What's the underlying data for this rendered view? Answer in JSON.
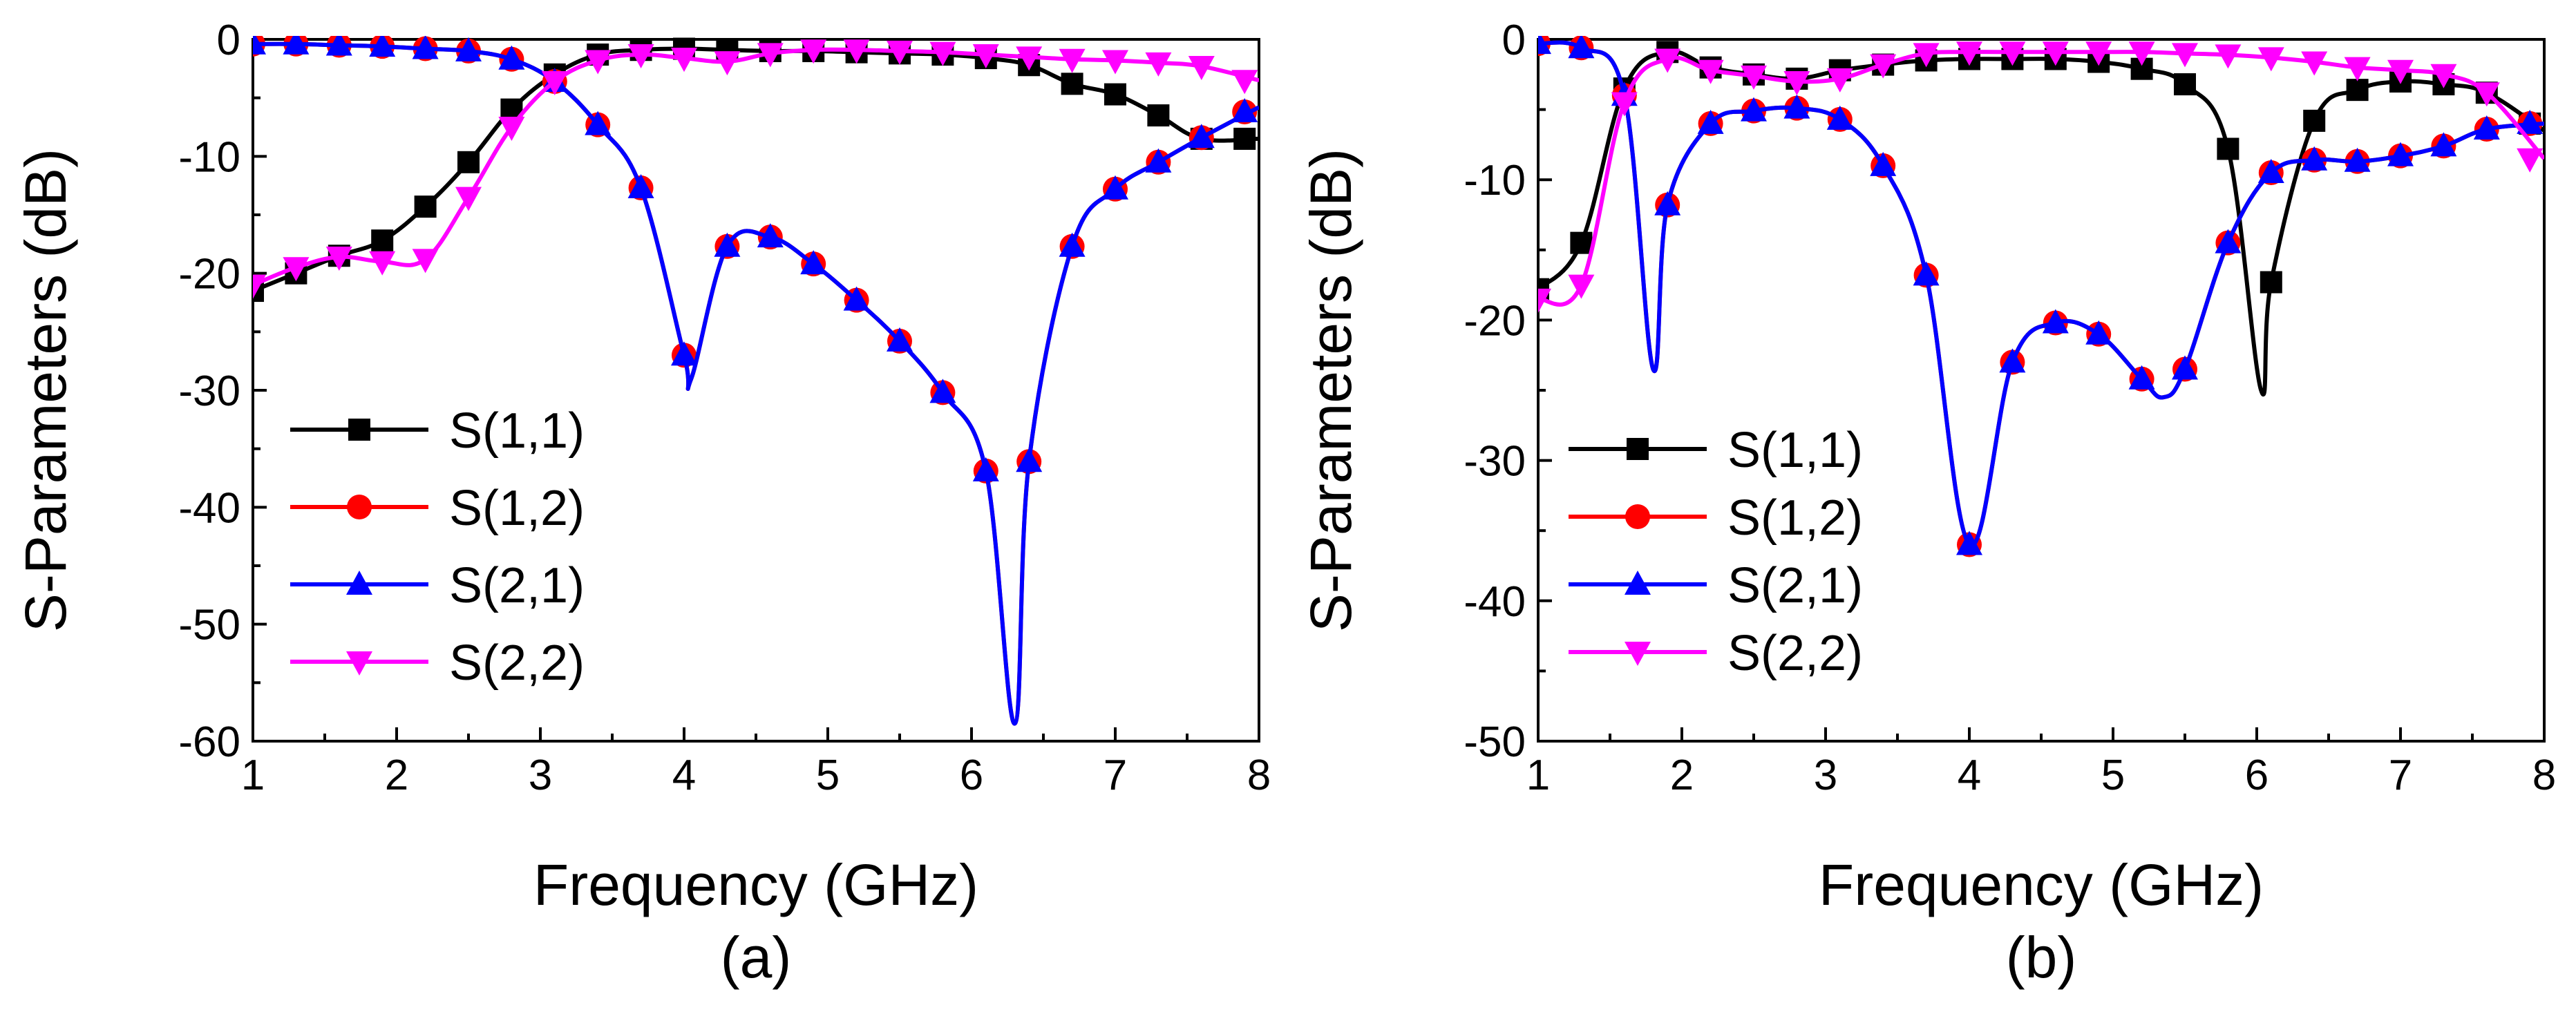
{
  "chart_data": [
    {
      "type": "line",
      "panel_label": "(a)",
      "xlabel": "Frequency (GHz)",
      "ylabel": "S-Parameters (dB)",
      "xlim": [
        1,
        8
      ],
      "ylim": [
        -60,
        0
      ],
      "xticks": [
        1,
        2,
        3,
        4,
        5,
        6,
        7,
        8
      ],
      "yticks": [
        0,
        -10,
        -20,
        -30,
        -40,
        -50,
        -60
      ],
      "grid": false,
      "legend_position": "bottom-left",
      "series": [
        {
          "name": "S(1,1)",
          "color": "#000000",
          "marker": "square",
          "x": [
            1.0,
            1.3,
            1.6,
            1.9,
            2.2,
            2.5,
            2.8,
            3.1,
            3.4,
            3.7,
            4.0,
            4.3,
            4.6,
            4.9,
            5.2,
            5.5,
            5.8,
            6.1,
            6.4,
            6.7,
            7.0,
            7.3,
            7.6,
            7.9
          ],
          "y": [
            -21.5,
            -20.0,
            -18.5,
            -17.2,
            -14.3,
            -10.5,
            -6.0,
            -3.0,
            -1.3,
            -0.9,
            -0.8,
            -0.9,
            -1.0,
            -1.0,
            -1.1,
            -1.2,
            -1.3,
            -1.6,
            -2.2,
            -3.8,
            -4.7,
            -6.5,
            -8.5,
            -8.5
          ],
          "curve_x": [
            1.0,
            1.3,
            1.6,
            1.9,
            2.2,
            2.5,
            2.8,
            3.1,
            3.4,
            3.7,
            4.0,
            4.3,
            4.6,
            4.9,
            5.2,
            5.5,
            5.8,
            6.1,
            6.4,
            6.7,
            7.0,
            7.3,
            7.6,
            8.0
          ],
          "curve_y": [
            -21.5,
            -20.0,
            -18.5,
            -17.2,
            -14.3,
            -10.5,
            -6.0,
            -3.0,
            -1.3,
            -0.9,
            -0.8,
            -0.9,
            -1.0,
            -1.0,
            -1.1,
            -1.2,
            -1.3,
            -1.6,
            -2.2,
            -3.8,
            -4.7,
            -6.5,
            -8.5,
            -8.5
          ]
        },
        {
          "name": "S(1,2)",
          "color": "#ff0000",
          "marker": "circle",
          "x": [
            1.0,
            1.3,
            1.6,
            1.9,
            2.2,
            2.5,
            2.8,
            3.1,
            3.4,
            3.7,
            4.0,
            4.3,
            4.6,
            4.9,
            5.2,
            5.5,
            5.8,
            6.1,
            6.4,
            6.7,
            7.0,
            7.3,
            7.6,
            7.9
          ],
          "y": [
            -0.4,
            -0.4,
            -0.5,
            -0.6,
            -0.8,
            -1.0,
            -1.7,
            -3.6,
            -7.3,
            -12.7,
            -27.0,
            -17.7,
            -16.9,
            -19.2,
            -22.3,
            -25.8,
            -30.2,
            -36.9,
            -36.1,
            -17.7,
            -12.8,
            -10.5,
            -8.4,
            -6.2
          ],
          "curve_x": [
            1.0,
            1.3,
            1.6,
            1.9,
            2.2,
            2.5,
            2.8,
            3.1,
            3.4,
            3.7,
            4.0,
            4.05,
            4.3,
            4.6,
            4.9,
            5.2,
            5.5,
            5.8,
            6.1,
            6.3,
            6.4,
            6.7,
            7.0,
            7.3,
            7.6,
            8.0
          ],
          "curve_y": [
            -0.4,
            -0.4,
            -0.5,
            -0.6,
            -0.8,
            -1.0,
            -1.7,
            -3.6,
            -7.3,
            -12.7,
            -27.0,
            -29.0,
            -17.7,
            -16.9,
            -19.2,
            -22.3,
            -25.8,
            -30.2,
            -36.9,
            -58.5,
            -36.1,
            -17.7,
            -12.8,
            -10.5,
            -8.4,
            -5.8
          ]
        },
        {
          "name": "S(2,1)",
          "color": "#0000ff",
          "marker": "triangle-up",
          "x": [
            1.0,
            1.3,
            1.6,
            1.9,
            2.2,
            2.5,
            2.8,
            3.1,
            3.4,
            3.7,
            4.0,
            4.3,
            4.6,
            4.9,
            5.2,
            5.5,
            5.8,
            6.1,
            6.4,
            6.7,
            7.0,
            7.3,
            7.6,
            7.9
          ],
          "y": [
            -0.4,
            -0.4,
            -0.5,
            -0.6,
            -0.8,
            -1.0,
            -1.7,
            -3.6,
            -7.3,
            -12.7,
            -27.0,
            -17.7,
            -16.9,
            -19.2,
            -22.3,
            -25.8,
            -30.2,
            -36.9,
            -36.1,
            -17.7,
            -12.8,
            -10.5,
            -8.4,
            -6.2
          ],
          "curve_x": [
            1.0,
            1.3,
            1.6,
            1.9,
            2.2,
            2.5,
            2.8,
            3.1,
            3.4,
            3.7,
            4.0,
            4.05,
            4.3,
            4.6,
            4.9,
            5.2,
            5.5,
            5.8,
            6.1,
            6.3,
            6.4,
            6.7,
            7.0,
            7.3,
            7.6,
            8.0
          ],
          "curve_y": [
            -0.4,
            -0.4,
            -0.5,
            -0.6,
            -0.8,
            -1.0,
            -1.7,
            -3.6,
            -7.3,
            -12.7,
            -27.0,
            -29.0,
            -17.7,
            -16.9,
            -19.2,
            -22.3,
            -25.8,
            -30.2,
            -36.9,
            -58.5,
            -36.1,
            -17.7,
            -12.8,
            -10.5,
            -8.4,
            -5.8
          ]
        },
        {
          "name": "S(2,2)",
          "color": "#ff00ff",
          "marker": "triangle-down",
          "x": [
            1.0,
            1.3,
            1.6,
            1.9,
            2.2,
            2.5,
            2.8,
            3.1,
            3.4,
            3.7,
            4.0,
            4.3,
            4.6,
            4.9,
            5.2,
            5.5,
            5.8,
            6.1,
            6.4,
            6.7,
            7.0,
            7.3,
            7.6,
            7.9
          ],
          "y": [
            -21.0,
            -19.5,
            -18.6,
            -19.0,
            -18.8,
            -13.5,
            -7.5,
            -3.6,
            -1.8,
            -1.3,
            -1.6,
            -1.9,
            -1.2,
            -0.9,
            -0.9,
            -1.0,
            -1.1,
            -1.3,
            -1.5,
            -1.7,
            -1.8,
            -2.0,
            -2.3,
            -3.5
          ],
          "curve_x": [
            1.0,
            1.3,
            1.6,
            1.9,
            2.2,
            2.5,
            2.8,
            3.1,
            3.4,
            3.7,
            4.0,
            4.3,
            4.6,
            4.9,
            5.2,
            5.5,
            5.8,
            6.1,
            6.4,
            6.7,
            7.0,
            7.3,
            7.6,
            8.0
          ],
          "curve_y": [
            -21.0,
            -19.5,
            -18.6,
            -19.0,
            -18.8,
            -13.5,
            -7.5,
            -3.6,
            -1.8,
            -1.3,
            -1.6,
            -1.9,
            -1.2,
            -0.9,
            -0.9,
            -1.0,
            -1.1,
            -1.3,
            -1.5,
            -1.7,
            -1.8,
            -2.0,
            -2.3,
            -3.5
          ]
        }
      ]
    },
    {
      "type": "line",
      "panel_label": "(b)",
      "xlabel": "Frequency (GHz)",
      "ylabel": "S-Parameters (dB)",
      "xlim": [
        1,
        8
      ],
      "ylim": [
        -50,
        0
      ],
      "xticks": [
        1,
        2,
        3,
        4,
        5,
        6,
        7,
        8
      ],
      "yticks": [
        0,
        -10,
        -20,
        -30,
        -40,
        -50
      ],
      "grid": false,
      "legend_position": "bottom-left",
      "series": [
        {
          "name": "S(1,1)",
          "color": "#000000",
          "marker": "square",
          "x": [
            1.0,
            1.3,
            1.6,
            1.9,
            2.2,
            2.5,
            2.8,
            3.1,
            3.4,
            3.7,
            4.0,
            4.3,
            4.6,
            4.9,
            5.2,
            5.5,
            5.8,
            6.1,
            6.4,
            6.7,
            7.0,
            7.3,
            7.6,
            7.9
          ],
          "y": [
            -17.8,
            -14.5,
            -3.5,
            -0.9,
            -2.0,
            -2.5,
            -2.8,
            -2.2,
            -1.8,
            -1.5,
            -1.4,
            -1.4,
            -1.4,
            -1.6,
            -2.1,
            -3.2,
            -7.8,
            -17.3,
            -5.8,
            -3.6,
            -3.0,
            -3.2,
            -3.8,
            -6.0
          ],
          "curve_x": [
            1.0,
            1.3,
            1.6,
            1.9,
            2.2,
            2.5,
            2.8,
            3.1,
            3.4,
            3.7,
            4.0,
            4.3,
            4.6,
            4.9,
            5.2,
            5.5,
            5.8,
            6.03,
            6.1,
            6.4,
            6.7,
            7.0,
            7.3,
            7.6,
            8.0
          ],
          "curve_y": [
            -17.8,
            -14.5,
            -3.5,
            -0.9,
            -2.0,
            -2.5,
            -2.8,
            -2.2,
            -1.8,
            -1.5,
            -1.4,
            -1.4,
            -1.4,
            -1.6,
            -2.1,
            -3.2,
            -7.8,
            -25.0,
            -17.3,
            -5.8,
            -3.6,
            -3.0,
            -3.2,
            -3.8,
            -6.5
          ]
        },
        {
          "name": "S(1,2)",
          "color": "#ff0000",
          "marker": "circle",
          "x": [
            1.0,
            1.3,
            1.6,
            1.9,
            2.2,
            2.5,
            2.8,
            3.1,
            3.4,
            3.7,
            4.0,
            4.3,
            4.6,
            4.9,
            5.2,
            5.5,
            5.8,
            6.1,
            6.4,
            6.7,
            7.0,
            7.3,
            7.6,
            7.9
          ],
          "y": [
            -0.3,
            -0.6,
            -4.0,
            -11.8,
            -6.0,
            -5.1,
            -4.9,
            -5.7,
            -9.0,
            -16.8,
            -36.0,
            -23.0,
            -20.2,
            -21.0,
            -24.2,
            -23.5,
            -14.5,
            -9.5,
            -8.6,
            -8.7,
            -8.3,
            -7.6,
            -6.4,
            -6.0
          ],
          "curve_x": [
            1.0,
            1.3,
            1.6,
            1.8,
            1.9,
            2.2,
            2.5,
            2.8,
            3.1,
            3.4,
            3.7,
            4.0,
            4.3,
            4.6,
            4.9,
            5.2,
            5.35,
            5.5,
            5.8,
            6.1,
            6.4,
            6.7,
            7.0,
            7.3,
            7.6,
            8.0
          ],
          "curve_y": [
            -0.3,
            -0.6,
            -4.0,
            -23.5,
            -11.8,
            -6.0,
            -5.1,
            -4.9,
            -5.7,
            -9.0,
            -16.8,
            -36.0,
            -23.0,
            -20.2,
            -21.0,
            -24.2,
            -25.5,
            -23.5,
            -14.5,
            -9.5,
            -8.6,
            -8.7,
            -8.3,
            -7.6,
            -6.4,
            -6.0
          ]
        },
        {
          "name": "S(2,1)",
          "color": "#0000ff",
          "marker": "triangle-up",
          "x": [
            1.0,
            1.3,
            1.6,
            1.9,
            2.2,
            2.5,
            2.8,
            3.1,
            3.4,
            3.7,
            4.0,
            4.3,
            4.6,
            4.9,
            5.2,
            5.5,
            5.8,
            6.1,
            6.4,
            6.7,
            7.0,
            7.3,
            7.6,
            7.9
          ],
          "y": [
            -0.3,
            -0.6,
            -4.0,
            -11.8,
            -6.0,
            -5.1,
            -4.9,
            -5.7,
            -9.0,
            -16.8,
            -36.0,
            -23.0,
            -20.2,
            -21.0,
            -24.2,
            -23.5,
            -14.5,
            -9.5,
            -8.6,
            -8.7,
            -8.3,
            -7.6,
            -6.4,
            -6.0
          ],
          "curve_x": [
            1.0,
            1.3,
            1.6,
            1.8,
            1.9,
            2.2,
            2.5,
            2.8,
            3.1,
            3.4,
            3.7,
            4.0,
            4.3,
            4.6,
            4.9,
            5.2,
            5.35,
            5.5,
            5.8,
            6.1,
            6.4,
            6.7,
            7.0,
            7.3,
            7.6,
            8.0
          ],
          "curve_y": [
            -0.3,
            -0.6,
            -4.0,
            -23.5,
            -11.8,
            -6.0,
            -5.1,
            -4.9,
            -5.7,
            -9.0,
            -16.8,
            -36.0,
            -23.0,
            -20.2,
            -21.0,
            -24.2,
            -25.5,
            -23.5,
            -14.5,
            -9.5,
            -8.6,
            -8.7,
            -8.3,
            -7.6,
            -6.4,
            -6.0
          ]
        },
        {
          "name": "S(2,2)",
          "color": "#ff00ff",
          "marker": "triangle-down",
          "x": [
            1.0,
            1.3,
            1.6,
            1.9,
            2.2,
            2.5,
            2.8,
            3.1,
            3.4,
            3.7,
            4.0,
            4.3,
            4.6,
            4.9,
            5.2,
            5.5,
            5.8,
            6.1,
            6.4,
            6.7,
            7.0,
            7.3,
            7.6,
            7.9
          ],
          "y": [
            -18.5,
            -17.5,
            -4.5,
            -1.4,
            -2.2,
            -2.6,
            -3.0,
            -2.8,
            -1.8,
            -1.0,
            -0.9,
            -0.9,
            -0.9,
            -0.9,
            -0.9,
            -1.0,
            -1.1,
            -1.3,
            -1.6,
            -2.0,
            -2.2,
            -2.5,
            -3.8,
            -8.5
          ],
          "curve_x": [
            1.0,
            1.3,
            1.6,
            1.9,
            2.2,
            2.5,
            2.8,
            3.1,
            3.4,
            3.7,
            4.0,
            4.3,
            4.6,
            4.9,
            5.2,
            5.5,
            5.8,
            6.1,
            6.4,
            6.7,
            7.0,
            7.3,
            7.6,
            8.0
          ],
          "curve_y": [
            -18.5,
            -17.5,
            -4.5,
            -1.4,
            -2.2,
            -2.6,
            -3.0,
            -2.8,
            -1.8,
            -1.0,
            -0.9,
            -0.9,
            -0.9,
            -0.9,
            -0.9,
            -1.0,
            -1.1,
            -1.3,
            -1.6,
            -2.0,
            -2.2,
            -2.5,
            -3.8,
            -8.5
          ]
        }
      ]
    }
  ]
}
